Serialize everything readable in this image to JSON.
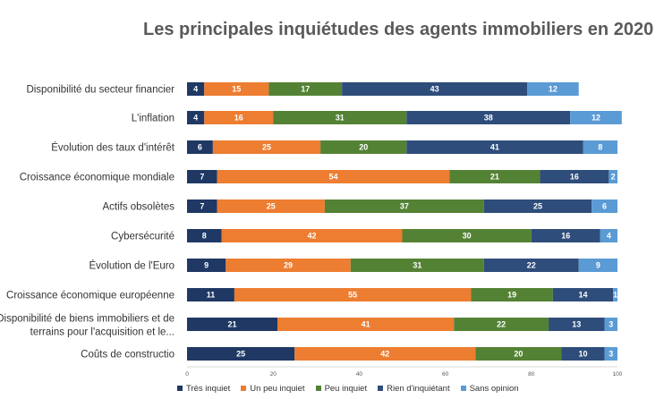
{
  "title": "Les principales inquiétudes des agents immobiliers en 2020",
  "chart_data": {
    "type": "bar",
    "orientation": "horizontal",
    "stacked": true,
    "title": "Les principales inquiétudes des agents immobiliers en 2020",
    "categories": [
      "Disponibilité du secteur financier",
      "L'inflation",
      "Évolution des taux d'intérêt",
      "Croissance économique mondiale",
      "Actifs obsolètes",
      "Cybersécurité",
      "Évolution de l'Euro",
      "Croissance économique européenne",
      "Disponibilité de biens immobiliers et de terrains pour l'acquisition et le...",
      "Coûts de constructio"
    ],
    "category_lines": [
      [
        "Disponibilité du secteur financier"
      ],
      [
        "L'inflation"
      ],
      [
        "Évolution des taux d'intérêt"
      ],
      [
        "Croissance économique mondiale"
      ],
      [
        "Actifs obsolètes"
      ],
      [
        "Cybersécurité"
      ],
      [
        "Évolution de l'Euro"
      ],
      [
        "Croissance économique européenne"
      ],
      [
        "Disponibilité de biens immobiliers et de",
        "terrains pour l'acquisition et le..."
      ],
      [
        "Coûts de constructio"
      ]
    ],
    "series": [
      {
        "name": "Très inquiet",
        "color": "#1f3864",
        "values": [
          4,
          4,
          6,
          7,
          7,
          8,
          9,
          11,
          21,
          25
        ]
      },
      {
        "name": "Un peu inquiet",
        "color": "#ed7d31",
        "values": [
          15,
          16,
          25,
          54,
          25,
          42,
          29,
          55,
          41,
          42
        ]
      },
      {
        "name": "Peu inquiet",
        "color": "#548235",
        "values": [
          17,
          31,
          20,
          21,
          37,
          30,
          31,
          19,
          22,
          20
        ]
      },
      {
        "name": "Rien d'inquiétant",
        "color": "#2e4d7b",
        "values": [
          43,
          38,
          41,
          16,
          25,
          16,
          22,
          14,
          13,
          10
        ]
      },
      {
        "name": "Sans opinion",
        "color": "#5b9bd5",
        "values": [
          12,
          12,
          8,
          2,
          6,
          4,
          9,
          1,
          3,
          3
        ]
      }
    ],
    "xlim": [
      0,
      100
    ],
    "xticks": [
      0,
      20,
      40,
      60,
      80,
      100
    ],
    "legend_position": "bottom"
  }
}
